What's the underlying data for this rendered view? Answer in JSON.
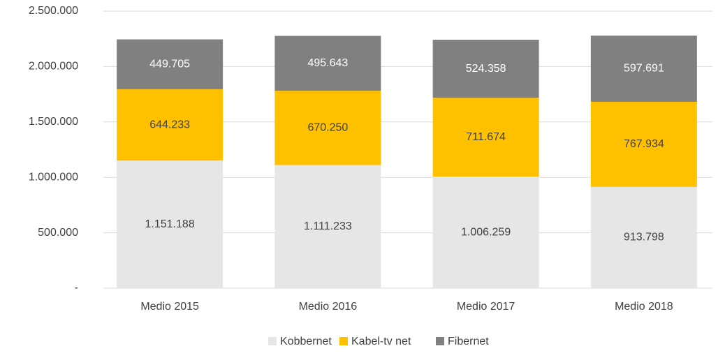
{
  "chart_data": {
    "type": "stacked_bar",
    "categories": [
      "Medio 2015",
      "Medio 2016",
      "Medio 2017",
      "Medio 2018"
    ],
    "series": [
      {
        "name": "Kobbernet",
        "color": "#e7e6e6",
        "label_color": "#404040",
        "values": [
          1151188,
          1111233,
          1006259,
          913798
        ],
        "value_labels": [
          "1.151.188",
          "1.111.233",
          "1.006.259",
          "913.798"
        ]
      },
      {
        "name": "Kabel-tv net",
        "color": "#ffc000",
        "label_color": "#404040",
        "values": [
          644233,
          670250,
          711674,
          767934
        ],
        "value_labels": [
          "644.233",
          "670.250",
          "711.674",
          "767.934"
        ]
      },
      {
        "name": "Fibernet",
        "color": "#808080",
        "label_color": "#ffffff",
        "values": [
          449705,
          495643,
          524358,
          597691
        ],
        "value_labels": [
          "449.705",
          "495.643",
          "524.358",
          "597.691"
        ]
      }
    ],
    "ylim": [
      0,
      2500000
    ],
    "yticks": [
      {
        "value": 0,
        "label": "-"
      },
      {
        "value": 500000,
        "label": "500.000"
      },
      {
        "value": 1000000,
        "label": "1.000.000"
      },
      {
        "value": 1500000,
        "label": "1.500.000"
      },
      {
        "value": 2000000,
        "label": "2.000.000"
      },
      {
        "value": 2500000,
        "label": "2.500.000"
      }
    ],
    "grid": true
  }
}
